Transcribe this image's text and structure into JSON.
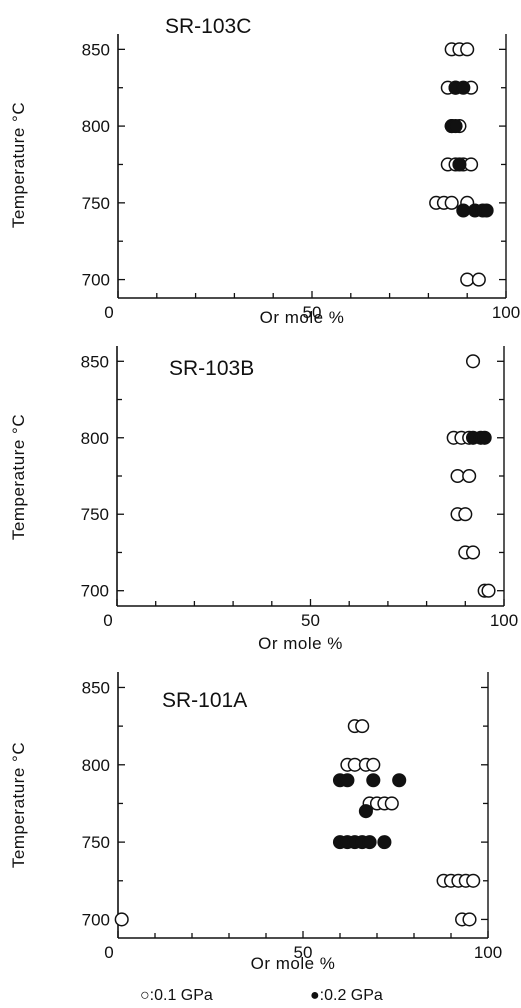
{
  "chart_data": [
    {
      "type": "scatter",
      "title": "SR-103C",
      "xlabel": "Or mole %",
      "ylabel": "Temperature °C",
      "xlim": [
        0,
        100
      ],
      "ylim": [
        688,
        860
      ],
      "xticks": [
        "0",
        "50",
        "100"
      ],
      "yticks": [
        "700",
        "750",
        "800",
        "850"
      ],
      "grid": false,
      "series": [
        {
          "name": "0.1 GPa",
          "marker": "open-circle",
          "points": [
            [
              86,
              850
            ],
            [
              88,
              850
            ],
            [
              90,
              850
            ],
            [
              85,
              825
            ],
            [
              87,
              825
            ],
            [
              91,
              825
            ],
            [
              86,
              800
            ],
            [
              88,
              800
            ],
            [
              85,
              775
            ],
            [
              87,
              775
            ],
            [
              89,
              775
            ],
            [
              91,
              775
            ],
            [
              82,
              750
            ],
            [
              84,
              750
            ],
            [
              86,
              750
            ],
            [
              90,
              750
            ],
            [
              90,
              700
            ],
            [
              93,
              700
            ]
          ]
        },
        {
          "name": "0.2 GPa",
          "marker": "filled-circle",
          "points": [
            [
              87,
              825
            ],
            [
              89,
              825
            ],
            [
              86,
              800
            ],
            [
              87,
              800
            ],
            [
              88,
              775
            ],
            [
              89,
              745
            ],
            [
              92,
              745
            ],
            [
              94,
              745
            ],
            [
              95,
              745
            ]
          ]
        }
      ]
    },
    {
      "type": "scatter",
      "title": "SR-103B",
      "xlabel": "Or mole %",
      "ylabel": "Temperature °C",
      "xlim": [
        0,
        100
      ],
      "ylim": [
        690,
        860
      ],
      "xticks": [
        "0",
        "50",
        "100"
      ],
      "yticks": [
        "700",
        "750",
        "800",
        "850"
      ],
      "grid": false,
      "series": [
        {
          "name": "0.1 GPa",
          "marker": "open-circle",
          "points": [
            [
              92,
              850
            ],
            [
              87,
              800
            ],
            [
              89,
              800
            ],
            [
              91,
              800
            ],
            [
              88,
              775
            ],
            [
              91,
              775
            ],
            [
              88,
              750
            ],
            [
              90,
              750
            ],
            [
              90,
              725
            ],
            [
              92,
              725
            ],
            [
              95,
              700
            ],
            [
              96,
              700
            ]
          ]
        },
        {
          "name": "0.2 GPa",
          "marker": "filled-circle",
          "points": [
            [
              92,
              800
            ],
            [
              94,
              800
            ],
            [
              95,
              800
            ]
          ]
        }
      ]
    },
    {
      "type": "scatter",
      "title": "SR-101A",
      "xlabel": "Or mole %",
      "ylabel": "Temperature °C",
      "xlim": [
        0,
        100
      ],
      "ylim": [
        688,
        860
      ],
      "xticks": [
        "0",
        "50",
        "100"
      ],
      "yticks": [
        "700",
        "750",
        "800",
        "850"
      ],
      "grid": false,
      "series": [
        {
          "name": "0.1 GPa",
          "marker": "open-circle",
          "points": [
            [
              64,
              825
            ],
            [
              66,
              825
            ],
            [
              62,
              800
            ],
            [
              64,
              800
            ],
            [
              67,
              800
            ],
            [
              69,
              800
            ],
            [
              68,
              775
            ],
            [
              70,
              775
            ],
            [
              72,
              775
            ],
            [
              74,
              775
            ],
            [
              88,
              725
            ],
            [
              90,
              725
            ],
            [
              92,
              725
            ],
            [
              94,
              725
            ],
            [
              96,
              725
            ],
            [
              93,
              700
            ],
            [
              95,
              700
            ],
            [
              1,
              700
            ]
          ]
        },
        {
          "name": "0.2 GPa",
          "marker": "filled-circle",
          "points": [
            [
              60,
              790
            ],
            [
              62,
              790
            ],
            [
              69,
              790
            ],
            [
              76,
              790
            ],
            [
              67,
              770
            ],
            [
              60,
              750
            ],
            [
              62,
              750
            ],
            [
              64,
              750
            ],
            [
              66,
              750
            ],
            [
              68,
              750
            ],
            [
              72,
              750
            ]
          ]
        }
      ]
    }
  ],
  "legend": {
    "open_label": "○:0.1 GPa",
    "filled_label": "●:0.2 GPa",
    "placement": "bottom"
  }
}
